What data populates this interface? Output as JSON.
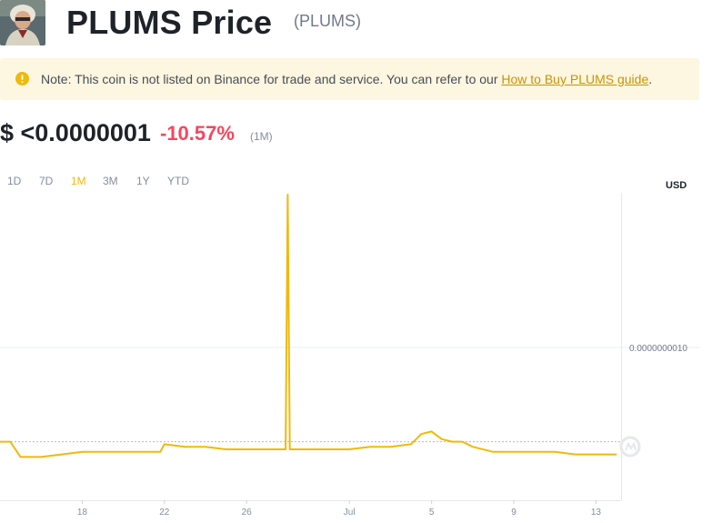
{
  "header": {
    "title": "PLUMS Price",
    "symbol": "(PLUMS)"
  },
  "note": {
    "icon": "warning-circle-icon",
    "text": "Note: This coin is not listed on Binance for trade and service. You can refer to our ",
    "link_text": "How to Buy PLUMS guide",
    "suffix": "."
  },
  "price": {
    "value": "$ <0.0000001",
    "change": "-10.57%",
    "period": "(1M)"
  },
  "timeframe_tabs": [
    {
      "label": "1D",
      "active": false
    },
    {
      "label": "7D",
      "active": false
    },
    {
      "label": "1M",
      "active": true
    },
    {
      "label": "3M",
      "active": false
    },
    {
      "label": "1Y",
      "active": false
    },
    {
      "label": "YTD",
      "active": false
    }
  ],
  "currency_label": "USD",
  "colors": {
    "accent": "#f0b90b",
    "negative": "#f6465d",
    "note_bg": "#fdf6e0",
    "link": "#c99400"
  },
  "chart_data": {
    "type": "line",
    "x_tick_labels": [
      "18",
      "22",
      "26",
      "Jul",
      "5",
      "9",
      "13"
    ],
    "y_tick_labels": [
      "0.0000000010"
    ],
    "series": [
      {
        "x": [
          "Jun 14",
          "Jun 14.5",
          "Jun 15",
          "Jun 16",
          "Jun 17",
          "Jun 18",
          "Jun 20",
          "Jun 21.8",
          "Jun 22",
          "Jun 23",
          "Jun 24",
          "Jun 25",
          "Jun 26",
          "Jun 27",
          "Jun 27.9",
          "Jun 28",
          "Jun 28.1",
          "Jun 29",
          "Jul 1",
          "Jul 2",
          "Jul 3",
          "Jul 4",
          "Jul 4.5",
          "Jul 5",
          "Jul 5.5",
          "Jul 6",
          "Jul 6.5",
          "Jul 7",
          "Jul 8",
          "Jul 9",
          "Jul 11",
          "Jul 12",
          "Jul 13",
          "Jul 14"
        ],
        "values": [
          6.3e-10,
          6.3e-10,
          5.7e-10,
          5.7e-10,
          5.8e-10,
          5.9e-10,
          5.9e-10,
          5.9e-10,
          6.2e-10,
          6.1e-10,
          6.1e-10,
          6e-10,
          6e-10,
          6e-10,
          6e-10,
          1.6e-09,
          6e-10,
          6e-10,
          6e-10,
          6.1e-10,
          6.1e-10,
          6.2e-10,
          6.6e-10,
          6.7e-10,
          6.4e-10,
          6.3e-10,
          6.3e-10,
          6.1e-10,
          5.9e-10,
          5.9e-10,
          5.9e-10,
          5.8e-10,
          5.8e-10,
          5.8e-10
        ]
      }
    ],
    "ylim": [
      4e-10,
      1.6e-09
    ],
    "dotted_reference_value": 6.3e-10,
    "grid": true
  }
}
